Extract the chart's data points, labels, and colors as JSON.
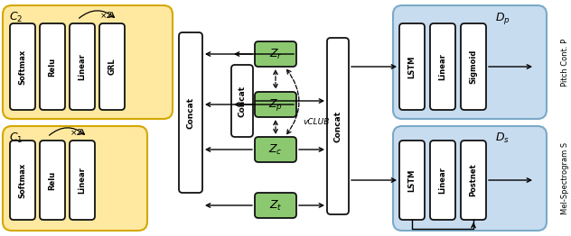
{
  "fig_width": 6.32,
  "fig_height": 2.62,
  "dpi": 100,
  "bg_color": "#ffffff",
  "yellow_bg": "#FFE9A0",
  "yellow_edge": "#D4A800",
  "blue_bg": "#C8DCEF",
  "blue_edge": "#7AAAC8",
  "green_fill": "#8CC870",
  "white_fill": "#FFFFFF",
  "box_edge": "#111111",
  "c2_boxes": [
    "Softmax",
    "Relu",
    "Linear",
    "GRL"
  ],
  "c1_boxes": [
    "Softmax",
    "Relu",
    "Linear"
  ],
  "dp_boxes": [
    "LSTM",
    "Linear",
    "Sigmoid"
  ],
  "ds_boxes": [
    "LSTM",
    "Linear",
    "Postnet"
  ],
  "z_labels": [
    "Z_r",
    "Z_p",
    "Z_c",
    "Z_t"
  ]
}
